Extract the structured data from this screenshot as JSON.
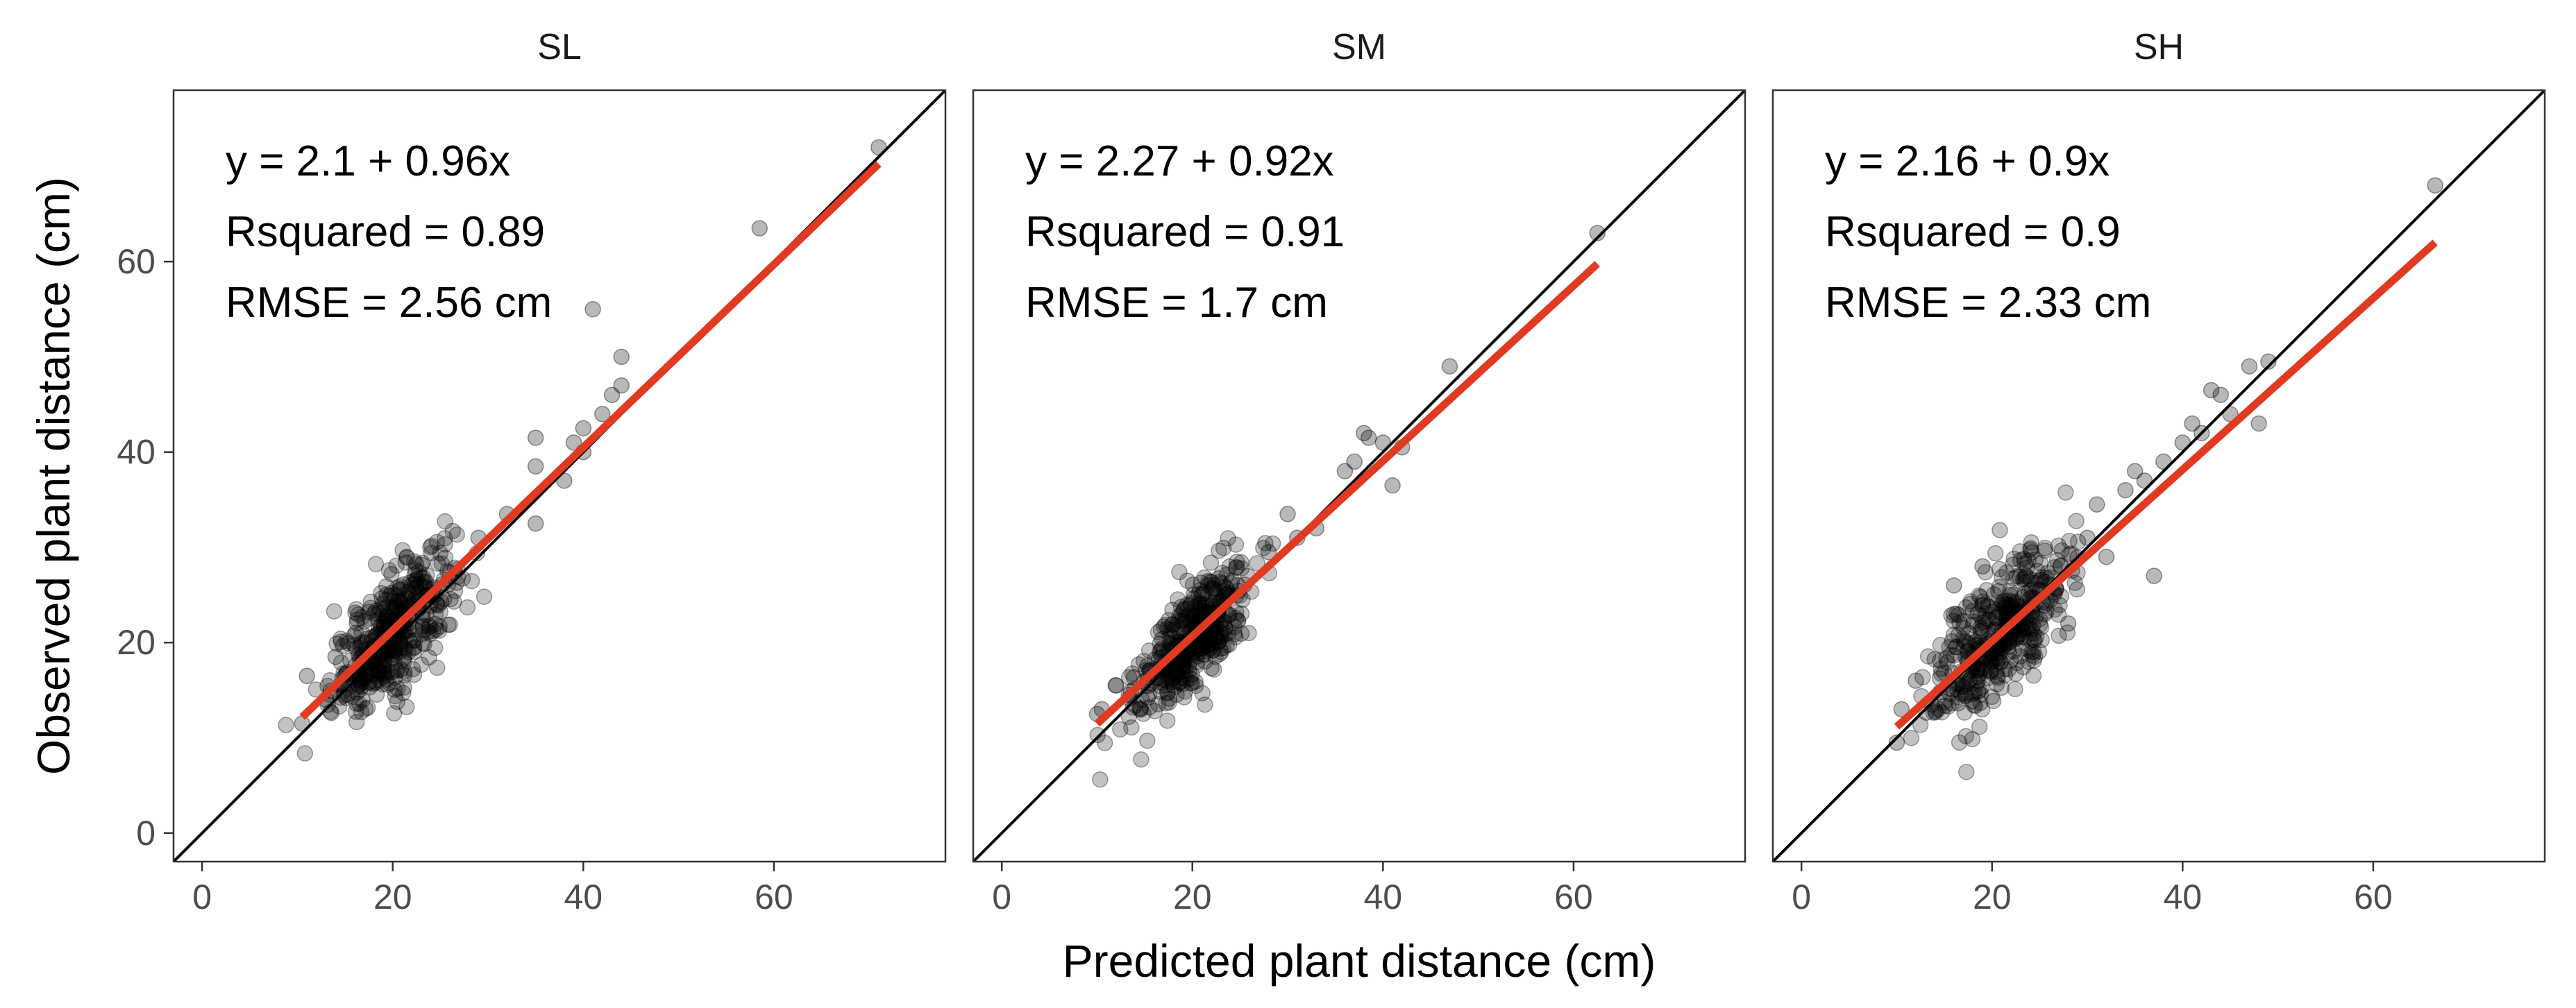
{
  "chart_data": [
    {
      "type": "scatter",
      "panel": "SL",
      "xlabel": "Predicted plant distance (cm)",
      "ylabel": "Observed plant distance (cm)",
      "xlim": [
        -3,
        78
      ],
      "ylim": [
        -3,
        78
      ],
      "xticks": [
        0,
        20,
        40,
        60
      ],
      "yticks": [
        0,
        20,
        40,
        60
      ],
      "reference_line": {
        "intercept": 0,
        "slope": 1,
        "color": "#000000"
      },
      "fit_line": {
        "intercept": 2.1,
        "slope": 0.96,
        "x_range": [
          10.5,
          71
        ],
        "color": "#e03a22"
      },
      "annotations": [
        "y = 2.1 + 0.96x",
        "Rsquared = 0.89",
        "RMSE = 2.56 cm"
      ],
      "cluster": {
        "center": [
          20,
          21
        ],
        "spread": [
          3.2,
          3.0
        ],
        "slope": 0.96,
        "n": 420
      },
      "points": [
        [
          10.5,
          11.5
        ],
        [
          11,
          16.5
        ],
        [
          13,
          14
        ],
        [
          14,
          18.5
        ],
        [
          29,
          31
        ],
        [
          32,
          33.5
        ],
        [
          35,
          41.5
        ],
        [
          35,
          38.5
        ],
        [
          35,
          32.5
        ],
        [
          38,
          37
        ],
        [
          39,
          41
        ],
        [
          40,
          42.5
        ],
        [
          40,
          40
        ],
        [
          41,
          55
        ],
        [
          42,
          44
        ],
        [
          43,
          46
        ],
        [
          44,
          50
        ],
        [
          44,
          47
        ],
        [
          58.5,
          63.5
        ],
        [
          71,
          72
        ]
      ]
    },
    {
      "type": "scatter",
      "panel": "SM",
      "xlabel": "Predicted plant distance (cm)",
      "ylabel": "Observed plant distance (cm)",
      "xlim": [
        -3,
        78
      ],
      "ylim": [
        -3,
        78
      ],
      "xticks": [
        0,
        20,
        40,
        60
      ],
      "yticks": [
        0,
        20,
        40,
        60
      ],
      "reference_line": {
        "intercept": 0,
        "slope": 1,
        "color": "#000000"
      },
      "fit_line": {
        "intercept": 2.27,
        "slope": 0.92,
        "x_range": [
          10,
          62.5
        ],
        "color": "#e03a22"
      },
      "annotations": [
        "y = 2.27 + 0.92x",
        "Rsquared = 0.91",
        "RMSE = 1.7 cm"
      ],
      "cluster": {
        "center": [
          20,
          20.5
        ],
        "spread": [
          3.0,
          2.6
        ],
        "slope": 0.92,
        "n": 420
      },
      "points": [
        [
          10,
          12.5
        ],
        [
          10.5,
          13
        ],
        [
          12,
          15.5
        ],
        [
          28,
          29.5
        ],
        [
          30,
          33.5
        ],
        [
          31,
          31
        ],
        [
          33,
          32
        ],
        [
          36,
          38
        ],
        [
          37,
          39
        ],
        [
          38,
          42
        ],
        [
          38.5,
          41.5
        ],
        [
          40,
          41
        ],
        [
          41,
          36.5
        ],
        [
          42,
          40.5
        ],
        [
          47,
          49
        ],
        [
          62.5,
          63
        ]
      ]
    },
    {
      "type": "scatter",
      "panel": "SH",
      "xlabel": "Predicted plant distance (cm)",
      "ylabel": "Observed plant distance (cm)",
      "xlim": [
        -3,
        78
      ],
      "ylim": [
        -3,
        78
      ],
      "xticks": [
        0,
        20,
        40,
        60
      ],
      "yticks": [
        0,
        20,
        40,
        60
      ],
      "reference_line": {
        "intercept": 0,
        "slope": 1,
        "color": "#000000"
      },
      "fit_line": {
        "intercept": 2.16,
        "slope": 0.9,
        "x_range": [
          10,
          66.5
        ],
        "color": "#e03a22"
      },
      "annotations": [
        "y = 2.16 + 0.9x",
        "Rsquared = 0.9",
        "RMSE = 2.33 cm"
      ],
      "cluster": {
        "center": [
          21,
          21
        ],
        "spread": [
          3.6,
          3.4
        ],
        "slope": 0.9,
        "n": 420
      },
      "points": [
        [
          10,
          9.5
        ],
        [
          10.5,
          13
        ],
        [
          12,
          16
        ],
        [
          16,
          26
        ],
        [
          19,
          28
        ],
        [
          28,
          22
        ],
        [
          30,
          31
        ],
        [
          31,
          34.5
        ],
        [
          32,
          29
        ],
        [
          34,
          36
        ],
        [
          35,
          38
        ],
        [
          36,
          37
        ],
        [
          37,
          27
        ],
        [
          38,
          39
        ],
        [
          40,
          41
        ],
        [
          41,
          43
        ],
        [
          42,
          42
        ],
        [
          43,
          46.5
        ],
        [
          44,
          46
        ],
        [
          45,
          44
        ],
        [
          47,
          49
        ],
        [
          48,
          43
        ],
        [
          49,
          49.5
        ],
        [
          66.5,
          68
        ]
      ]
    }
  ]
}
